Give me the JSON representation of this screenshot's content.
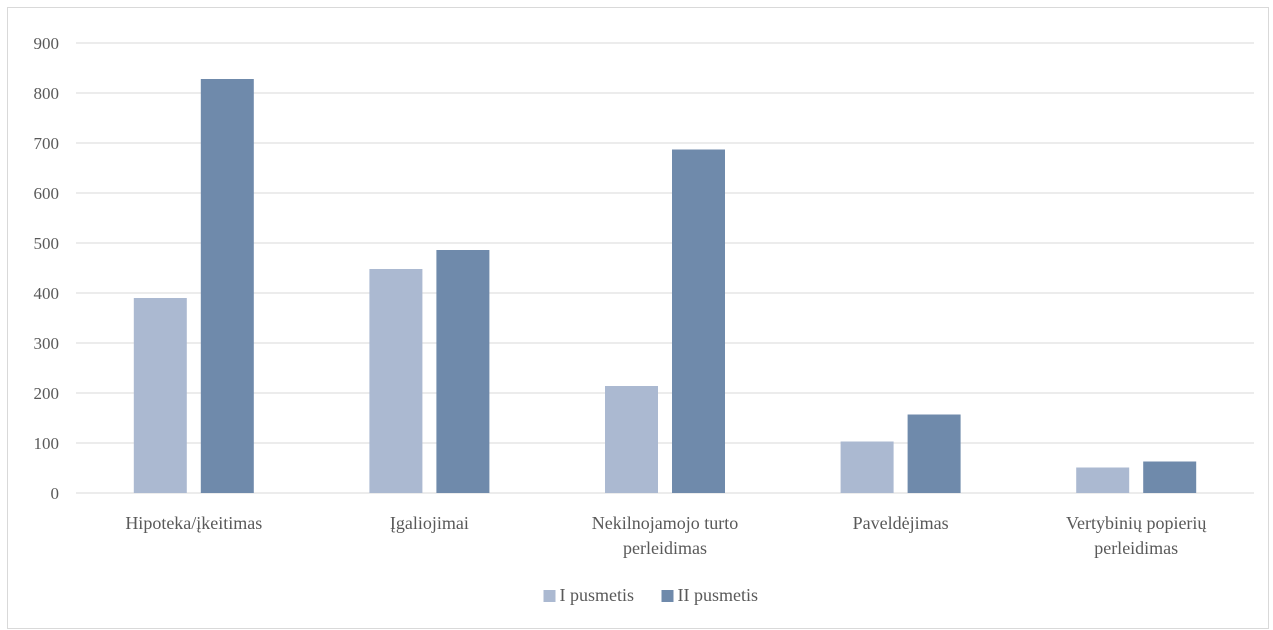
{
  "chart_data": {
    "type": "bar",
    "categories": [
      [
        "Hipoteka/įkeitimas"
      ],
      [
        "Įgaliojimai"
      ],
      [
        "Nekilnojamojo turto",
        "perleidimas"
      ],
      [
        "Paveldėjimas"
      ],
      [
        "Vertybinių popierių",
        "perleidimas"
      ]
    ],
    "series": [
      {
        "name": "I pusmetis",
        "color": "#abb9d1",
        "values": [
          390,
          448,
          214,
          103,
          51
        ]
      },
      {
        "name": "II pusmetis",
        "color": "#6f8aab",
        "values": [
          828,
          486,
          687,
          157,
          63
        ]
      }
    ],
    "yticks": [
      "0",
      "100",
      "200",
      "300",
      "400",
      "500",
      "600",
      "700",
      "800",
      "900"
    ],
    "ylim": [
      0,
      900
    ],
    "grid": true,
    "legend_position": "bottom",
    "gridline_color": "#d9d9d9"
  }
}
